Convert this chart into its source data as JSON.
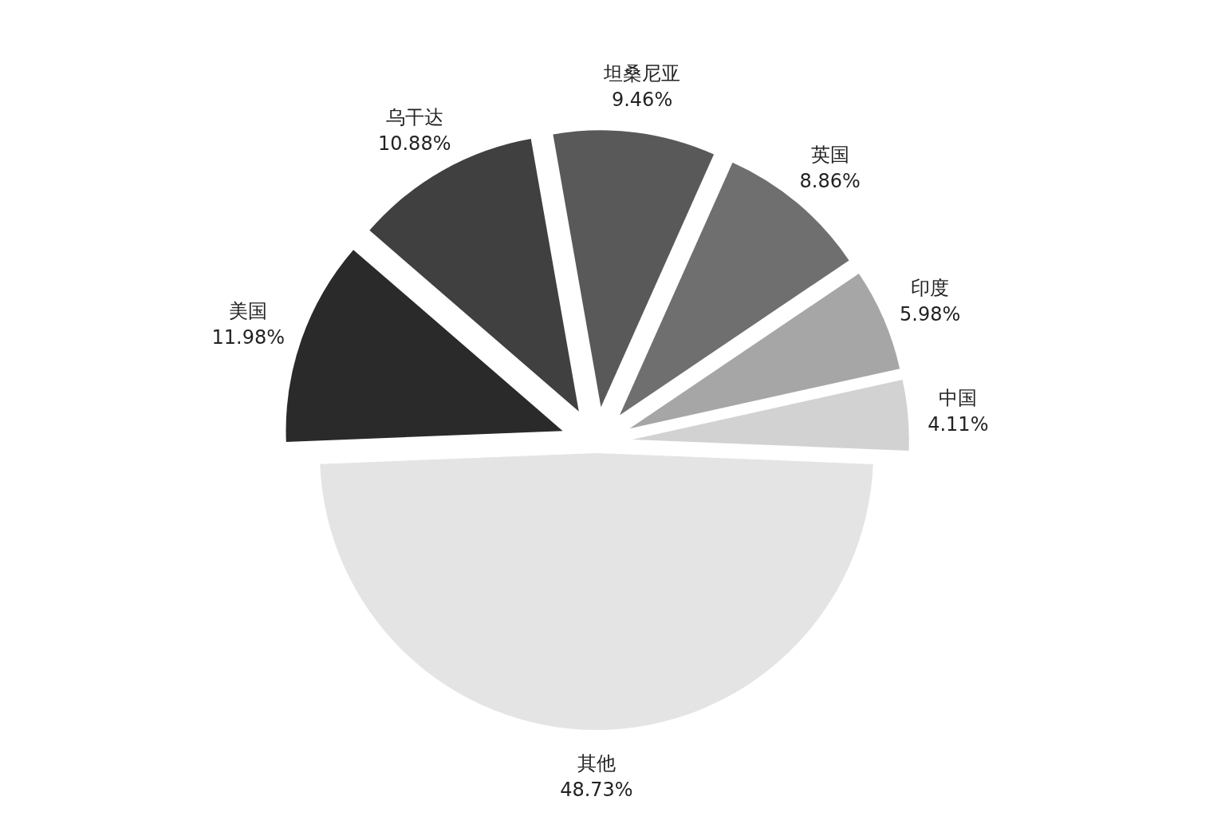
{
  "chart_data": {
    "type": "pie",
    "categories": [
      "中国",
      "印度",
      "英国",
      "坦桑尼亚",
      "乌干达",
      "美国",
      "其他"
    ],
    "values": [
      4.11,
      5.98,
      8.86,
      9.46,
      10.88,
      11.98,
      48.73
    ],
    "value_labels": [
      "4.11%",
      "5.98%",
      "8.86%",
      "9.46%",
      "10.88%",
      "11.98%",
      "48.73%"
    ],
    "colors": [
      "#d2d2d2",
      "#a6a6a6",
      "#6f6f6f",
      "#595959",
      "#404040",
      "#2a2a2a",
      "#e4e4e4"
    ]
  }
}
